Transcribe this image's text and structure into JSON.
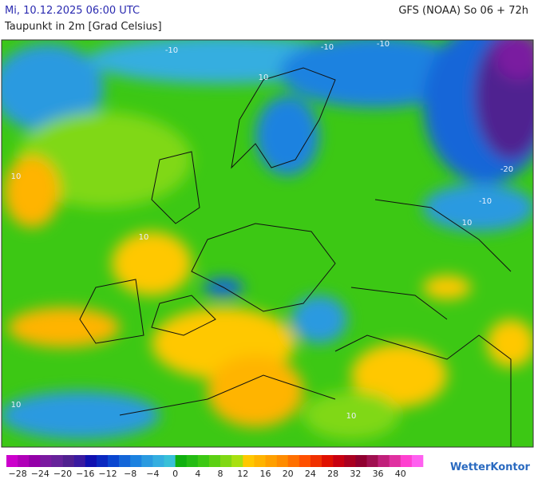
{
  "header": {
    "datetime": "Mi, 10.12.2025 06:00 UTC",
    "model": "GFS (NOAA) So 06 + 72h",
    "title": "Taupunkt in 2m [Grad Celsius]"
  },
  "map": {
    "contour_labels": [
      "-10",
      "-10",
      "-10",
      "-20",
      "-10",
      "10",
      "10",
      "10",
      "10",
      "10",
      "10"
    ]
  },
  "colorbar": {
    "colors": [
      "#cc00cc",
      "#b000b8",
      "#9400a8",
      "#7a1aa0",
      "#66229a",
      "#502090",
      "#3a1aa0",
      "#1010b0",
      "#0a28c0",
      "#0a46d0",
      "#1466d8",
      "#1c82e0",
      "#2a9ae0",
      "#34aee0",
      "#38c0d8",
      "#10b010",
      "#24bc14",
      "#3cc814",
      "#5cd014",
      "#80d814",
      "#a8e010",
      "#ffc800",
      "#ffb400",
      "#ffa000",
      "#ff8c00",
      "#ff7000",
      "#ff5000",
      "#f03000",
      "#e01000",
      "#c80010",
      "#aa0020",
      "#900030",
      "#a01050",
      "#c0207a",
      "#e030a0",
      "#ff40d0",
      "#ff60f0"
    ],
    "labels": [
      "−28",
      "−24",
      "−20",
      "−16",
      "−12",
      "−8",
      "−4",
      "0",
      "4",
      "8",
      "12",
      "16",
      "20",
      "24",
      "28",
      "32",
      "36",
      "40"
    ]
  },
  "brand": "WetterKontor"
}
